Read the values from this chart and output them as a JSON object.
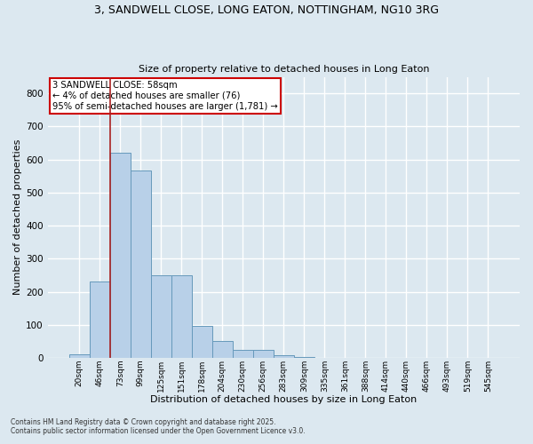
{
  "title_line1": "3, SANDWELL CLOSE, LONG EATON, NOTTINGHAM, NG10 3RG",
  "title_line2": "Size of property relative to detached houses in Long Eaton",
  "xlabel": "Distribution of detached houses by size in Long Eaton",
  "ylabel": "Number of detached properties",
  "fig_bg_color": "#dce8f0",
  "plot_bg_color": "#dce8f0",
  "bar_color": "#b8d0e8",
  "bar_edge_color": "#6699bb",
  "grid_color": "#ffffff",
  "annotation_line_color": "#aa2222",
  "annotation_box_color": "#cc0000",
  "categories": [
    "20sqm",
    "46sqm",
    "73sqm",
    "99sqm",
    "125sqm",
    "151sqm",
    "178sqm",
    "204sqm",
    "230sqm",
    "256sqm",
    "283sqm",
    "309sqm",
    "335sqm",
    "361sqm",
    "388sqm",
    "414sqm",
    "440sqm",
    "466sqm",
    "493sqm",
    "519sqm",
    "545sqm"
  ],
  "values": [
    10,
    232,
    620,
    568,
    250,
    250,
    98,
    52,
    25,
    25,
    8,
    2,
    0,
    0,
    0,
    0,
    0,
    0,
    0,
    0,
    0
  ],
  "annotation_line1": "3 SANDWELL CLOSE: 58sqm",
  "annotation_line2": "← 4% of detached houses are smaller (76)",
  "annotation_line3": "95% of semi-detached houses are larger (1,781) →",
  "vline_x": 1.5,
  "ylim": [
    0,
    850
  ],
  "yticks": [
    0,
    100,
    200,
    300,
    400,
    500,
    600,
    700,
    800
  ],
  "footnote_line1": "Contains HM Land Registry data © Crown copyright and database right 2025.",
  "footnote_line2": "Contains public sector information licensed under the Open Government Licence v3.0."
}
